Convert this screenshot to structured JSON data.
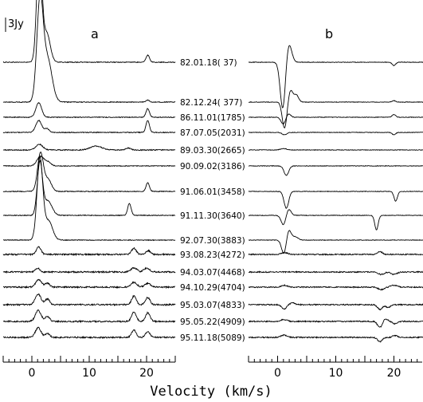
{
  "chart_data": {
    "type": "line",
    "scale_label": "3Jy",
    "scale_bar_jy": 3,
    "xlabel": "Velocity (km/s)",
    "xlim": [
      -5,
      25
    ],
    "xticks": [
      0,
      10,
      20
    ],
    "panels": [
      {
        "label": "a",
        "series": [
          {
            "label": "82.01.18( 37)",
            "features": [
              [
                1.3,
                24,
                0.45
              ],
              [
                2.6,
                6,
                0.6
              ],
              [
                20.2,
                1.5,
                0.3
              ]
            ],
            "noise": 0.08
          },
          {
            "label": "82.12.24( 377)",
            "features": [
              [
                1.4,
                20,
                0.55
              ],
              [
                2.7,
                9,
                0.8
              ],
              [
                20.2,
                0.4,
                0.3
              ]
            ],
            "noise": 0.08
          },
          {
            "label": "86.11.01(1785)",
            "features": [
              [
                1.2,
                3,
                0.5
              ],
              [
                20.2,
                1.8,
                0.3
              ]
            ],
            "noise": 0.08
          },
          {
            "label": "87.07.05(2031)",
            "features": [
              [
                1.2,
                2.5,
                0.5
              ],
              [
                2.6,
                0.8,
                0.4
              ],
              [
                20.2,
                2.5,
                0.3
              ]
            ],
            "noise": 0.08
          },
          {
            "label": "89.03.30(2665)",
            "features": [
              [
                1.3,
                1.2,
                0.6
              ],
              [
                11.2,
                0.8,
                1.0
              ],
              [
                16.8,
                0.4,
                0.4
              ]
            ],
            "noise": 0.1
          },
          {
            "label": "90.09.02(3186)",
            "features": [
              [
                1.5,
                2.0,
                0.6
              ],
              [
                2.8,
                0.8,
                0.5
              ]
            ],
            "noise": 0.08
          },
          {
            "label": "91.06.01(3458)",
            "features": [
              [
                1.5,
                8,
                0.5
              ],
              [
                2.8,
                2.5,
                0.6
              ],
              [
                20.2,
                1.8,
                0.3
              ]
            ],
            "noise": 0.08
          },
          {
            "label": "91.11.30(3640)",
            "features": [
              [
                1.4,
                11,
                0.45
              ],
              [
                2.8,
                3.0,
                0.7
              ],
              [
                17.0,
                2.5,
                0.3
              ]
            ],
            "noise": 0.08
          },
          {
            "label": "92.07.30(3883)",
            "features": [
              [
                1.4,
                17,
                0.5
              ],
              [
                2.9,
                4,
                0.7
              ]
            ],
            "noise": 0.08
          },
          {
            "label": "93.08.23(4272)",
            "features": [
              [
                1.2,
                1.6,
                0.4
              ],
              [
                17.8,
                1.3,
                0.4
              ],
              [
                20.3,
                0.8,
                0.4
              ]
            ],
            "noise": 0.15
          },
          {
            "label": "94.03.07(4468)",
            "features": [
              [
                1.0,
                0.8,
                0.4
              ],
              [
                17.8,
                0.9,
                0.5
              ],
              [
                20.0,
                0.8,
                0.5
              ]
            ],
            "noise": 0.15
          },
          {
            "label": "94.10.29(4704)",
            "features": [
              [
                1.2,
                1.6,
                0.5
              ],
              [
                2.7,
                0.8,
                0.4
              ],
              [
                17.8,
                1.0,
                0.5
              ],
              [
                20.2,
                0.8,
                0.5
              ]
            ],
            "noise": 0.15
          },
          {
            "label": "95.03.07(4833)",
            "features": [
              [
                1.1,
                2.2,
                0.5
              ],
              [
                2.7,
                1.2,
                0.4
              ],
              [
                17.8,
                1.8,
                0.4
              ],
              [
                20.2,
                1.5,
                0.4
              ]
            ],
            "noise": 0.15
          },
          {
            "label": "95.05.22(4909)",
            "features": [
              [
                1.1,
                2.3,
                0.5
              ],
              [
                2.7,
                1.0,
                0.4
              ],
              [
                17.8,
                2.0,
                0.4
              ],
              [
                20.2,
                1.8,
                0.4
              ]
            ],
            "noise": 0.15
          },
          {
            "label": "95.11.18(5089)",
            "features": [
              [
                1.1,
                2.0,
                0.5
              ],
              [
                2.7,
                0.8,
                0.4
              ],
              [
                17.8,
                1.5,
                0.4
              ],
              [
                20.2,
                1.2,
                0.4
              ]
            ],
            "noise": 0.15
          }
        ]
      },
      {
        "label": "b",
        "series": [
          {
            "features": [
              [
                0.9,
                -10,
                0.45
              ],
              [
                1.9,
                4,
                0.5
              ],
              [
                20.0,
                -0.7,
                0.3
              ]
            ],
            "noise": 0.06
          },
          {
            "features": [
              [
                1.2,
                -5.5,
                0.4
              ],
              [
                2.2,
                2.5,
                0.4
              ],
              [
                3.2,
                1.5,
                0.4
              ],
              [
                20.0,
                0.3,
                0.3
              ]
            ],
            "noise": 0.06
          },
          {
            "features": [
              [
                1.0,
                -1.5,
                0.4
              ],
              [
                1.8,
                0.8,
                0.4
              ],
              [
                20.0,
                0.6,
                0.3
              ]
            ],
            "noise": 0.06
          },
          {
            "features": [
              [
                1.2,
                -0.5,
                0.4
              ],
              [
                20.0,
                -0.5,
                0.3
              ]
            ],
            "noise": 0.06
          },
          {
            "features": [
              [
                1.0,
                0.3,
                0.5
              ]
            ],
            "noise": 0.06
          },
          {
            "features": [
              [
                1.5,
                -2.0,
                0.4
              ]
            ],
            "noise": 0.06
          },
          {
            "features": [
              [
                1.5,
                -3.5,
                0.4
              ],
              [
                20.3,
                -2.0,
                0.3
              ]
            ],
            "noise": 0.06
          },
          {
            "features": [
              [
                1.0,
                -2.0,
                0.4
              ],
              [
                1.9,
                1.3,
                0.4
              ],
              [
                17.0,
                -3.0,
                0.3
              ]
            ],
            "noise": 0.06
          },
          {
            "features": [
              [
                1.1,
                -3.0,
                0.4
              ],
              [
                1.9,
                2.2,
                0.4
              ],
              [
                3.0,
                0.7,
                0.5
              ]
            ],
            "noise": 0.06
          },
          {
            "features": [
              [
                1.2,
                0.4,
                0.5
              ],
              [
                17.6,
                0.6,
                0.4
              ]
            ],
            "noise": 0.12
          },
          {
            "features": [
              [
                17.8,
                -0.5,
                0.5
              ],
              [
                20.0,
                -0.5,
                0.5
              ]
            ],
            "noise": 0.12
          },
          {
            "features": [
              [
                1.2,
                0.4,
                0.5
              ],
              [
                17.8,
                -0.5,
                0.5
              ],
              [
                20.0,
                0.4,
                0.5
              ]
            ],
            "noise": 0.12
          },
          {
            "features": [
              [
                1.1,
                -0.9,
                0.4
              ],
              [
                2.6,
                0.4,
                0.4
              ],
              [
                17.6,
                -1.0,
                0.4
              ],
              [
                19.0,
                -0.6,
                0.4
              ]
            ],
            "noise": 0.12
          },
          {
            "features": [
              [
                1.1,
                0.4,
                0.5
              ],
              [
                17.6,
                -1.3,
                0.4
              ],
              [
                18.5,
                0.6,
                0.4
              ],
              [
                20.2,
                -0.5,
                0.4
              ]
            ],
            "noise": 0.12
          },
          {
            "features": [
              [
                1.1,
                0.5,
                0.5
              ],
              [
                17.6,
                -0.9,
                0.4
              ],
              [
                20.2,
                0.4,
                0.4
              ]
            ],
            "noise": 0.12
          }
        ]
      }
    ]
  }
}
